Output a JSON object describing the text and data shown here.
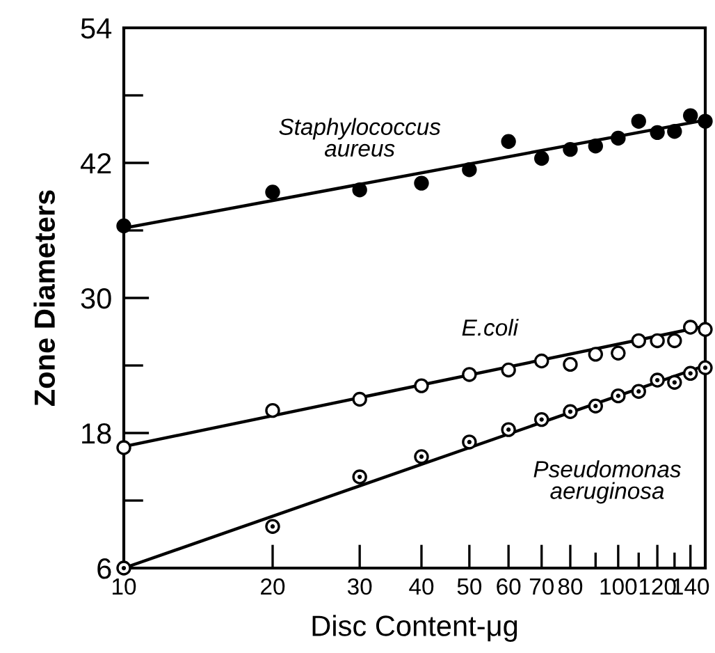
{
  "chart_data": {
    "type": "scatter",
    "xlabel": "Disc Content-μg",
    "ylabel": "Zone Diameters",
    "log": "x",
    "xlim": [
      10,
      150
    ],
    "ylim": [
      6,
      54
    ],
    "xticks": [
      10,
      20,
      30,
      40,
      50,
      60,
      70,
      80,
      {
        "value": 90,
        "label": null
      },
      100,
      {
        "value": 110,
        "label": null
      },
      120,
      {
        "value": 130,
        "label": null
      },
      140
    ],
    "yticks": [
      6,
      {
        "value": 12,
        "label": null
      },
      18,
      {
        "value": 24,
        "label": null
      },
      30,
      {
        "value": 36,
        "label": null
      },
      42,
      {
        "value": 48,
        "label": null
      },
      54
    ],
    "grid": false,
    "legend": false,
    "series": [
      {
        "name": "Staphylococcus\naureus",
        "color": "#000000",
        "marker": "circle",
        "x": [
          10,
          20,
          30,
          40,
          50,
          60,
          70,
          80,
          90,
          100,
          110,
          120,
          130,
          140,
          150
        ],
        "values": [
          36.4,
          39.4,
          39.6,
          40.2,
          41.4,
          43.9,
          42.4,
          43.2,
          43.5,
          44.2,
          45.7,
          44.7,
          44.8,
          46.2,
          45.7
        ]
      },
      {
        "name": "E.coli",
        "color": "#000000",
        "marker": "circle",
        "x": [
          10,
          20,
          30,
          40,
          50,
          60,
          70,
          80,
          90,
          100,
          110,
          120,
          130,
          140,
          150
        ],
        "values": [
          16.7,
          20.0,
          21.0,
          22.2,
          23.2,
          23.6,
          24.4,
          24.1,
          25.0,
          25.1,
          26.2,
          26.2,
          26.2,
          27.4,
          27.2
        ]
      },
      {
        "name": "Pseudomonas\naeruginosa",
        "color": "#000000",
        "marker": "circle",
        "x": [
          10,
          20,
          30,
          40,
          50,
          60,
          70,
          80,
          90,
          100,
          110,
          120,
          130,
          140,
          150
        ],
        "values": [
          6.0,
          9.7,
          14.1,
          15.9,
          17.2,
          18.3,
          19.2,
          19.9,
          20.4,
          21.3,
          21.7,
          22.7,
          22.5,
          23.3,
          23.8
        ]
      },
      {
        "type": "line",
        "color": "#000000",
        "line_style": "solid",
        "x": [
          10,
          150
        ],
        "values": [
          36.2,
          45.8
        ]
      },
      {
        "type": "line",
        "color": "#000000",
        "line_style": "solid",
        "x": [
          10,
          150
        ],
        "values": [
          16.8,
          27.5
        ]
      },
      {
        "type": "line",
        "color": "#000000",
        "line_style": "solid",
        "x": [
          10,
          150
        ],
        "values": [
          6.0,
          24.0
        ]
      }
    ]
  }
}
